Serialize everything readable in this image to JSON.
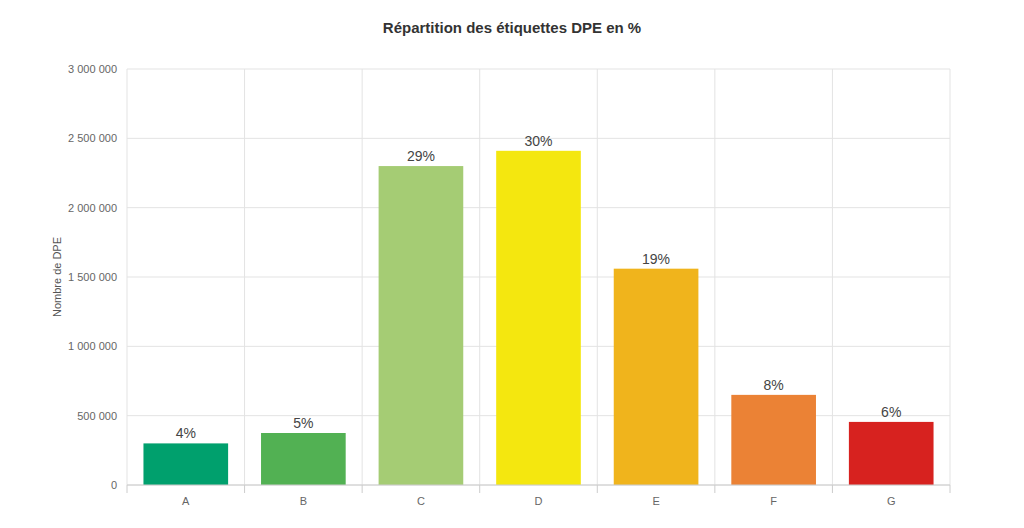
{
  "chart_data": {
    "type": "bar",
    "title": "Répartition des étiquettes DPE en %",
    "y_label": "Nombre de DPE",
    "categories": [
      "A",
      "B",
      "C",
      "D",
      "E",
      "F",
      "G"
    ],
    "values": [
      300000,
      375000,
      2300000,
      2410000,
      1560000,
      650000,
      455000
    ],
    "value_labels": [
      "4%",
      "5%",
      "29%",
      "30%",
      "19%",
      "8%",
      "6%"
    ],
    "colors": [
      "#00a06d",
      "#52b153",
      "#a5cc74",
      "#f4e70f",
      "#f0b41c",
      "#eb8235",
      "#d7221f"
    ],
    "ylim": [
      0,
      3000000
    ],
    "yticks": [
      0,
      {
        "value": 500000,
        "label": "500 000"
      },
      {
        "value": 1000000,
        "label": "1 000 000"
      },
      {
        "value": 1500000,
        "label": "1 500 000"
      },
      {
        "value": 2000000,
        "label": "2 000 000"
      },
      {
        "value": 2500000,
        "label": "2 500 000"
      },
      {
        "value": 3000000,
        "label": "3 000 000"
      }
    ],
    "grid": true,
    "data_labels": true
  }
}
